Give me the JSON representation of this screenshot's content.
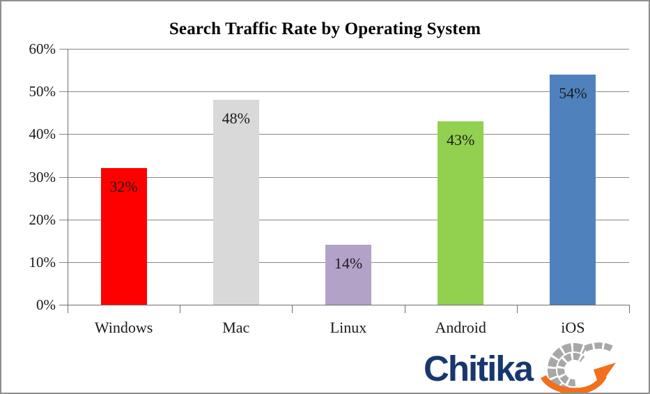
{
  "frame": {
    "background": "#ffffff",
    "border_color": "#8f8f8f"
  },
  "chart_data": {
    "type": "bar",
    "title": "Search Traffic Rate by Operating System",
    "categories": [
      "Windows",
      "Mac",
      "Linux",
      "Android",
      "iOS"
    ],
    "values": [
      32,
      48,
      14,
      43,
      54
    ],
    "data_labels": [
      "32%",
      "48%",
      "14%",
      "43%",
      "54%"
    ],
    "bar_colors": [
      "#FF0000",
      "#D9D9D9",
      "#B2A2C8",
      "#92D050",
      "#4F81BD"
    ],
    "y_tick_labels": [
      "0%",
      "10%",
      "20%",
      "30%",
      "40%",
      "50%",
      "60%"
    ],
    "ylim": [
      0,
      60
    ],
    "ytick_step": 10,
    "xlabel": "",
    "ylabel": "",
    "grid": "horizontal",
    "legend": "none",
    "gridline_color": "#878787",
    "axis_color": "#6e6e6e",
    "label_text_color": "#1c1c1c"
  },
  "logo": {
    "text": "Chitika",
    "text_color": "#17376E",
    "globe_color": "#A8A8A8",
    "arrow_color": "#F26F1D",
    "icon": "globe-grid-arrow-icon"
  }
}
